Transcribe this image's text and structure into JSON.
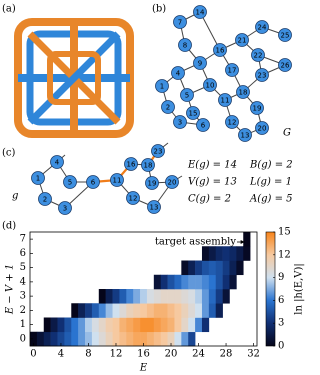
{
  "panel_labels": [
    "(a)",
    "(b)",
    "(c)",
    "(d)"
  ],
  "panel_b": {
    "nodes": [
      "7",
      "14",
      "8",
      "24",
      "25",
      "21",
      "16",
      "22",
      "26",
      "9",
      "4",
      "17",
      "23",
      "1",
      "5",
      "10",
      "2",
      "15",
      "11",
      "18",
      "3",
      "6",
      "19",
      "12",
      "13",
      "20"
    ],
    "label": "G"
  },
  "panel_c": {
    "nodes": [
      "4",
      "1",
      "5",
      "6",
      "2",
      "3",
      "11",
      "16",
      "18",
      "23",
      "19",
      "20",
      "12",
      "13"
    ],
    "label": "g",
    "equations": [
      "E(g) = 14",
      "B(g) = 2",
      "V(g) = 13",
      "L(g) = 1",
      "C(g) = 2",
      "A(g) = 5"
    ]
  },
  "chart_data": {
    "type": "heatmap",
    "xlabel": "E",
    "ylabel": "E − V + 1",
    "colorbar_label": "ln |h(E,V)|",
    "annotation": "target assembly",
    "xlim": [
      -0.5,
      32.5
    ],
    "ylim": [
      -0.5,
      7.5
    ],
    "xticks": [
      0,
      4,
      8,
      12,
      16,
      20,
      24,
      28,
      32
    ],
    "yticks": [
      0,
      1,
      2,
      3,
      4,
      5,
      6,
      7
    ],
    "clim": [
      0,
      15
    ],
    "cticks": [
      0,
      3,
      6,
      9,
      12,
      15
    ],
    "colors": [
      "#05051a",
      "#102f73",
      "#2a74d0",
      "#cfe0ef",
      "#f6c9a0",
      "#f7841a"
    ],
    "rows": [
      {
        "y": 0,
        "x0": 0,
        "values": [
          0,
          1,
          2,
          3,
          4,
          5,
          6,
          7,
          8,
          9,
          10,
          11,
          12,
          12.5,
          13,
          13.5,
          13.5,
          13,
          12.5,
          12,
          11,
          9,
          7,
          4
        ]
      },
      {
        "y": 1,
        "x0": 2,
        "values": [
          0,
          1.5,
          3,
          4.5,
          6,
          7,
          8.5,
          9.5,
          10.5,
          11.5,
          12,
          13,
          13.5,
          14,
          14.5,
          14.5,
          14,
          13.5,
          13,
          12,
          10.5,
          9,
          6.5,
          3
        ]
      },
      {
        "y": 2,
        "x0": 6,
        "values": [
          0,
          2,
          3.5,
          5,
          6.5,
          8,
          9,
          10,
          11,
          11.5,
          12,
          12.5,
          13,
          13,
          12.5,
          12,
          11,
          10,
          9,
          7,
          5,
          2
        ]
      },
      {
        "y": 3,
        "x0": 10,
        "values": [
          0,
          2,
          3.5,
          5,
          6.5,
          7.5,
          8.5,
          9.5,
          10,
          10.5,
          10.5,
          10.5,
          10,
          9.5,
          8.5,
          7,
          5.5,
          3.5,
          1
        ]
      },
      {
        "y": 4,
        "x0": 18,
        "values": [
          1,
          3,
          4.5,
          5.5,
          6.5,
          7,
          7,
          6.5,
          6,
          4.5,
          3,
          1
        ]
      },
      {
        "y": 5,
        "x0": 22,
        "values": [
          0.5,
          2,
          3.5,
          4.5,
          5,
          4.5,
          3.5,
          2,
          0.5
        ]
      },
      {
        "y": 6,
        "x0": 25,
        "values": [
          0.5,
          1.5,
          2.5,
          3,
          2.5,
          1.5,
          0.3
        ]
      },
      {
        "y": 7,
        "x0": 31,
        "values": [
          0
        ]
      }
    ]
  }
}
